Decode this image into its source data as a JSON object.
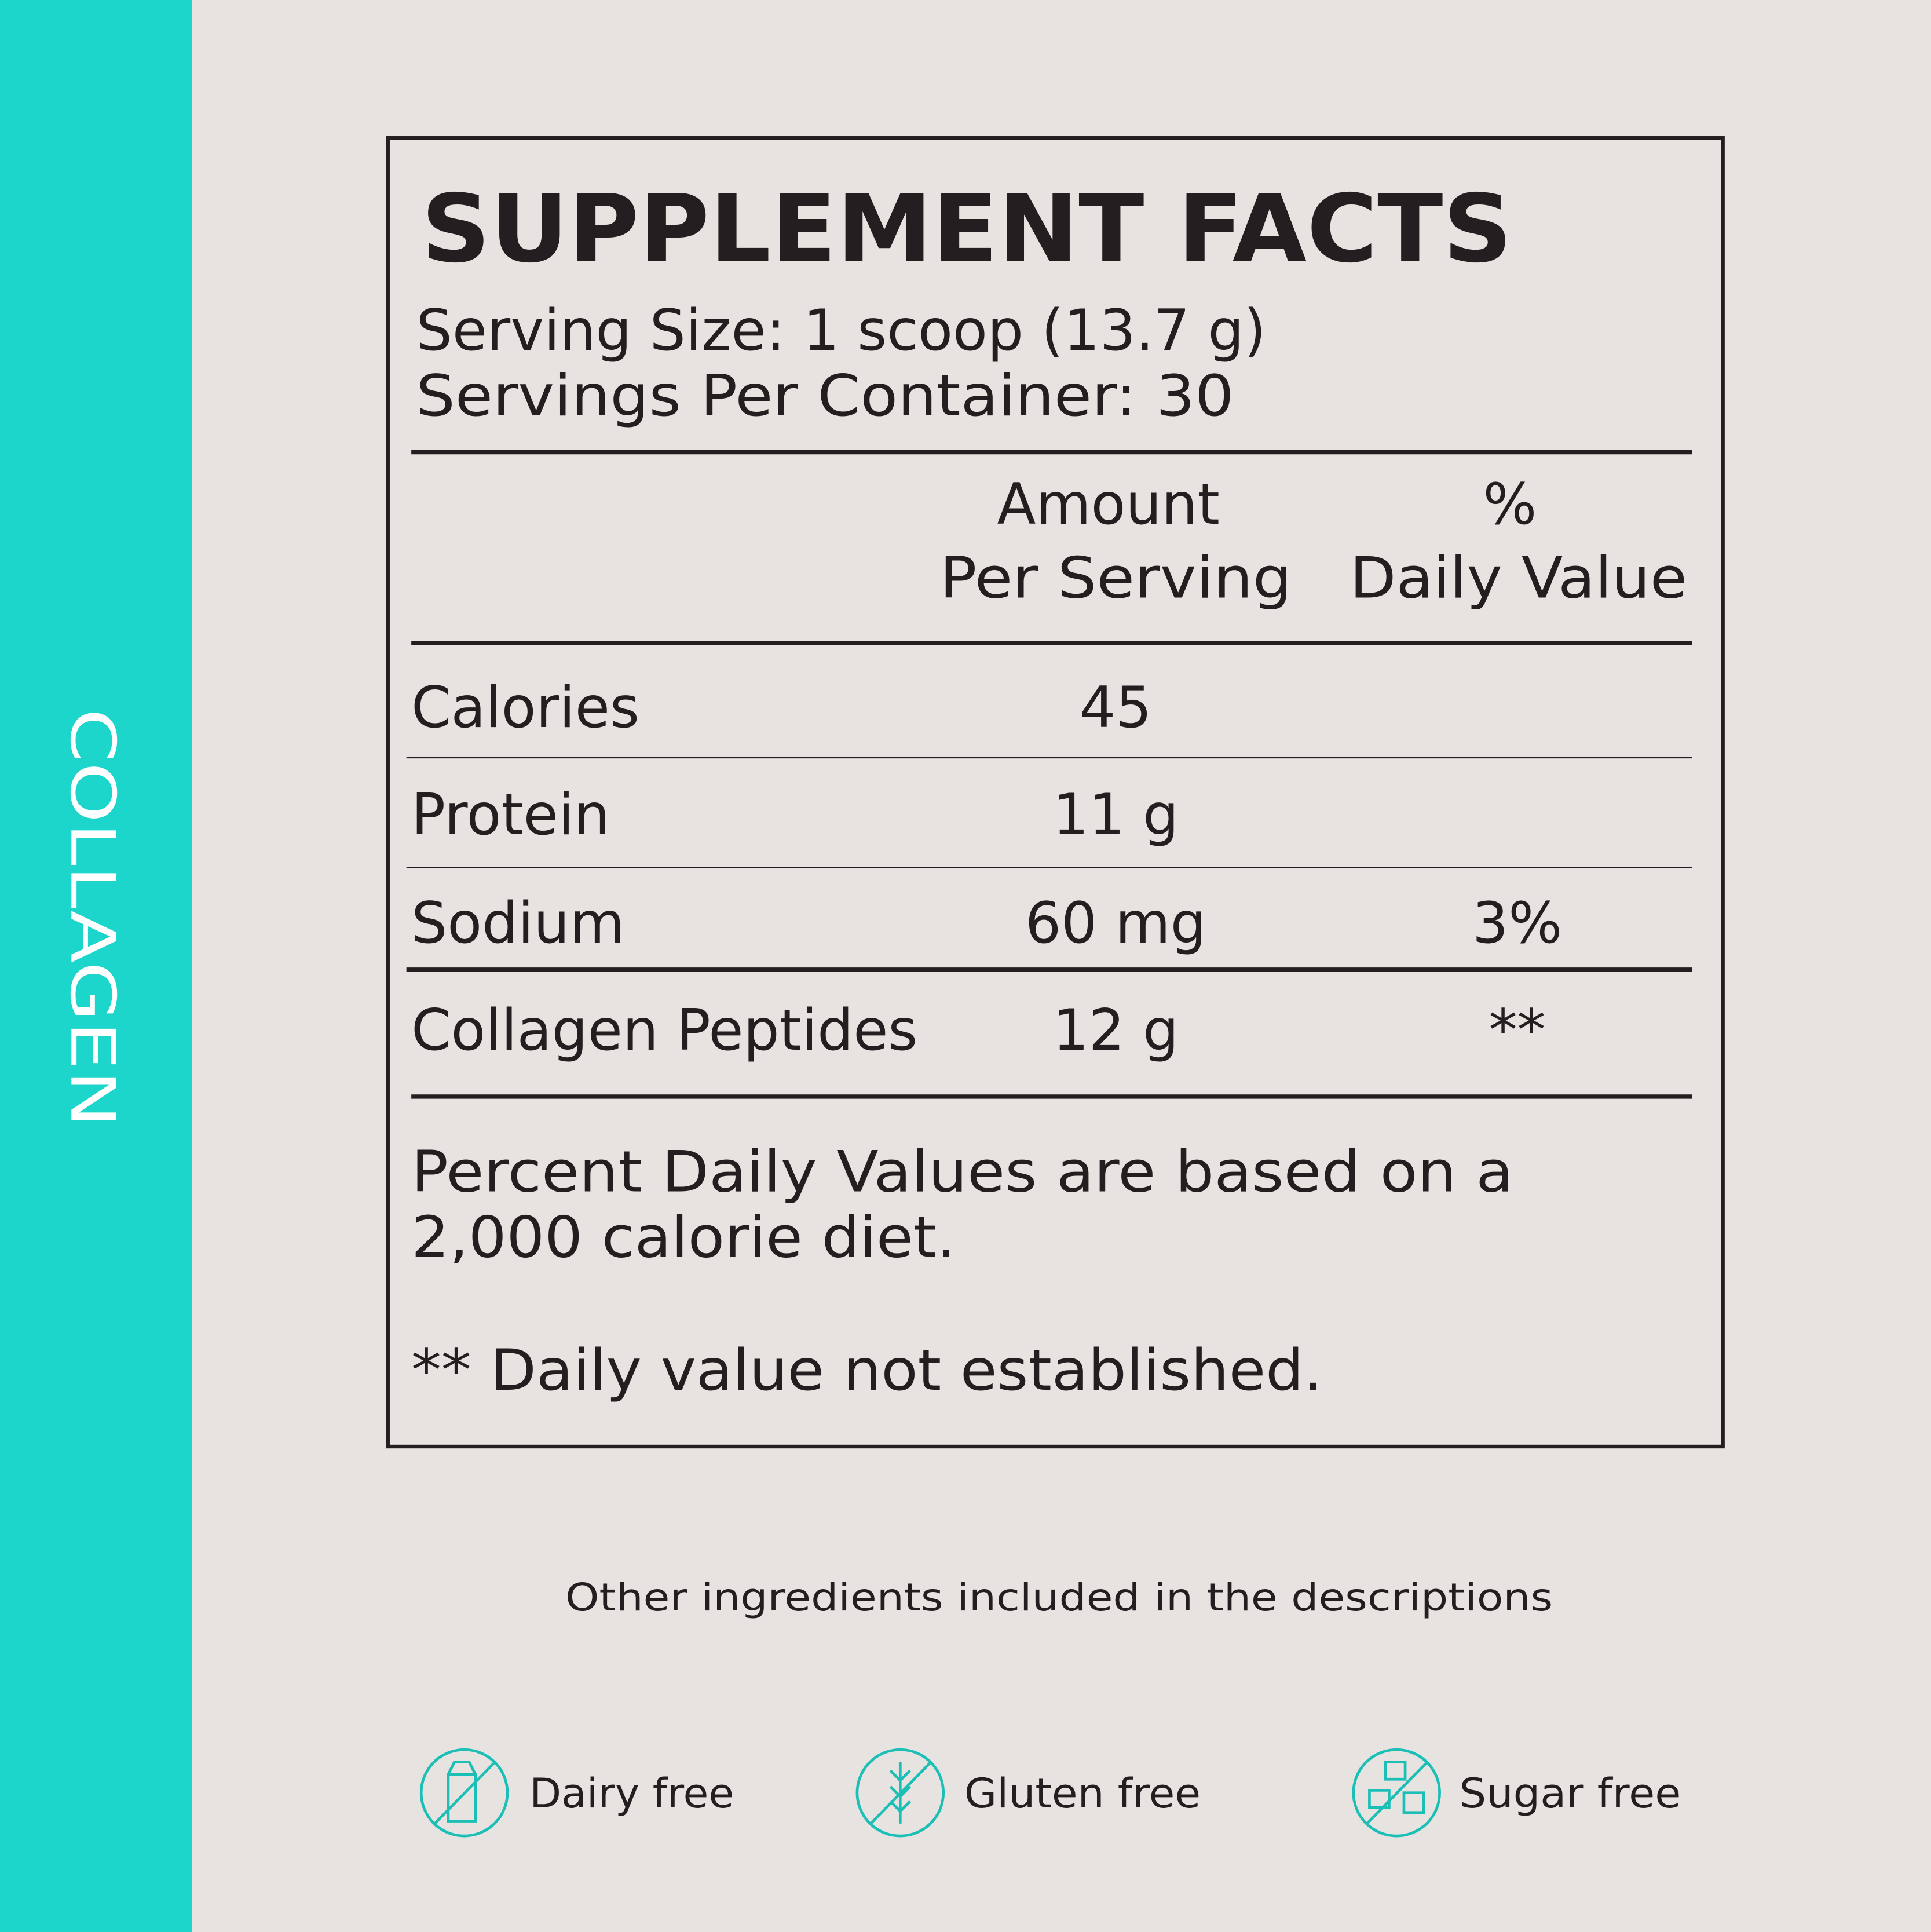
{
  "side_label": "COLLAGEN",
  "facts": {
    "title": "SUPPLEMENT FACTS",
    "serving_size": "Serving Size: 1 scoop (13.7 g)",
    "servings_per_container": "Servings Per Container: 30",
    "headers": {
      "amount": [
        "Amount",
        "Per Serving"
      ],
      "daily_value": [
        "%",
        "Daily Value"
      ]
    },
    "rows": [
      {
        "name": "Calories",
        "amount": "45"
      },
      {
        "name": "Protein",
        "amount": "11 g"
      },
      {
        "name": "Sodium",
        "amount": "60 mg",
        "daily_value": "3%"
      },
      {
        "name": "Collagen Peptides",
        "amount": "12 g",
        "daily_value": "**"
      }
    ],
    "footnote_lines": [
      "Percent Daily Values are based on a",
      "2,000 calorie diet."
    ],
    "footnote_2": "** Daily value not established."
  },
  "other_ingredients": "Other ingredients included in the descriptions",
  "badges": [
    {
      "label": "Dairy free"
    },
    {
      "label": "Gluten free"
    },
    {
      "label": "Sugar free"
    }
  ]
}
